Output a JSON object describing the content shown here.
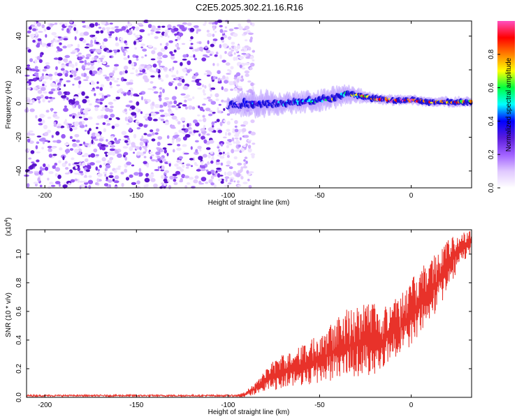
{
  "figure_title": "C2E5.2025.302.21.16.R16",
  "colors": {
    "snr_line": "#e8322a",
    "spectrogram_noise": "#8a3cf0",
    "colormap": [
      "#ffffff",
      "#e0c8ff",
      "#a060ff",
      "#5a1cdc",
      "#0000ff",
      "#00ffff",
      "#00ff40",
      "#ffff00",
      "#ff8000",
      "#ff0000",
      "#ff50c0"
    ]
  },
  "chart_data": [
    {
      "type": "heatmap",
      "title": "C2E5.2025.302.21.16.R16",
      "xlabel": "Height of straight line (km)",
      "ylabel": "Frequency (Hz)",
      "xlim": [
        -210,
        33
      ],
      "ylim": [
        -50,
        49
      ],
      "xticks": [
        -200,
        -150,
        -100,
        -50,
        0
      ],
      "yticks": [
        40,
        20,
        0,
        -20,
        -40
      ],
      "xtick_labels": [
        "-200",
        "-150",
        "-100",
        "-50",
        "0"
      ],
      "ytick_labels": [
        "40",
        "20",
        "0",
        "-20",
        "-40"
      ],
      "noise_region": {
        "x_from": -210,
        "x_to": -92,
        "freq_range": [
          -50,
          49
        ],
        "amplitude": 0.1
      },
      "signal_ridge": {
        "x": [
          -100,
          -90,
          -80,
          -70,
          -60,
          -50,
          -40,
          -35,
          -30,
          -20,
          -10,
          0,
          10,
          20,
          33
        ],
        "center_freq": [
          -1,
          0,
          0,
          0,
          1,
          2,
          4,
          6,
          5,
          3,
          2,
          2,
          1,
          1,
          1
        ],
        "half_width": [
          3,
          5,
          5,
          4,
          4,
          4,
          4,
          4,
          3,
          2,
          2,
          2,
          2,
          2,
          2
        ],
        "amplitude": [
          0.15,
          0.3,
          0.35,
          0.35,
          0.4,
          0.45,
          0.5,
          0.55,
          0.6,
          0.85,
          0.9,
          0.95,
          0.85,
          0.8,
          0.7
        ]
      },
      "colorbar": {
        "label": "Normalized spectral amplitude",
        "range": [
          0,
          1
        ],
        "ticks": [
          0.0,
          0.2,
          0.4,
          0.6,
          0.8
        ],
        "tick_labels": [
          "0.0",
          "0.2",
          "0.4",
          "0.6",
          "0.8"
        ]
      }
    },
    {
      "type": "line",
      "xlabel": "Height of straight line (km)",
      "ylabel": "SNR (10 * v/v)",
      "exponent_label": "(x10",
      "exponent_power": "4",
      "exponent_close": ")",
      "xlim": [
        -210,
        33
      ],
      "ylim": [
        0,
        1.17
      ],
      "xticks": [
        -200,
        -150,
        -100,
        -50,
        0
      ],
      "xtick_labels": [
        "-200",
        "-150",
        "-100",
        "-50",
        "0"
      ],
      "yticks": [
        0.0,
        0.2,
        0.4,
        0.6,
        0.8,
        1.0
      ],
      "ytick_labels": [
        "0.0",
        "0.2",
        "0.4",
        "0.6",
        "0.8",
        "1.0"
      ],
      "series": [
        {
          "name": "SNR",
          "x": [
            -210,
            -100,
            -92,
            -85,
            -80,
            -75,
            -70,
            -65,
            -60,
            -55,
            -50,
            -45,
            -40,
            -35,
            -30,
            -25,
            -20,
            -17,
            -15,
            -10,
            -5,
            0,
            5,
            10,
            15,
            20,
            25,
            33
          ],
          "envelope": [
            0.01,
            0.01,
            0.03,
            0.1,
            0.18,
            0.26,
            0.3,
            0.33,
            0.36,
            0.4,
            0.46,
            0.52,
            0.58,
            0.62,
            0.64,
            0.66,
            0.68,
            0.55,
            0.62,
            0.7,
            0.74,
            0.82,
            0.9,
            0.96,
            1.04,
            1.1,
            1.14,
            1.17
          ],
          "floor": [
            0.0,
            0.0,
            0.0,
            0.02,
            0.04,
            0.05,
            0.06,
            0.07,
            0.08,
            0.09,
            0.1,
            0.11,
            0.12,
            0.13,
            0.14,
            0.15,
            0.16,
            0.18,
            0.22,
            0.26,
            0.3,
            0.36,
            0.44,
            0.52,
            0.62,
            0.74,
            0.88,
            1.02
          ]
        }
      ]
    }
  ]
}
